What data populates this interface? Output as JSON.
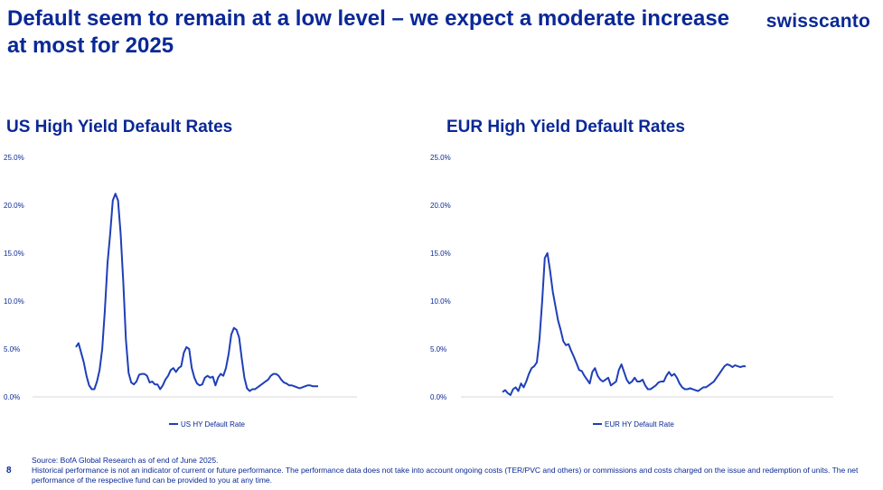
{
  "header": {
    "title": "Default seem to remain at a low level – we expect a moderate increase at most for 2025",
    "logo_text": "swisscanto"
  },
  "colors": {
    "brand": "#0a2896",
    "series": "#1f3fb8"
  },
  "chart_data": [
    {
      "type": "line",
      "title": "US High Yield Default Rates",
      "ylim": [
        0,
        25
      ],
      "yticks": [
        "0.0%",
        "5.0%",
        "10.0%",
        "15.0%",
        "20.0%",
        "25.0%"
      ],
      "legend": "US HY Default Rate",
      "legend_position": "bottom-center",
      "series": [
        {
          "name": "US HY Default Rate",
          "x_index": [
            0,
            1,
            2,
            3,
            4,
            5,
            6,
            7,
            8,
            9,
            10,
            11,
            12,
            13,
            14,
            15,
            16,
            17,
            18,
            19,
            20,
            21,
            22,
            23,
            24,
            25,
            26,
            27,
            28,
            29,
            30,
            31,
            32,
            33,
            34,
            35,
            36,
            37,
            38,
            39,
            40,
            41,
            42,
            43,
            44,
            45,
            46,
            47,
            48,
            49,
            50,
            51,
            52,
            53,
            54,
            55,
            56,
            57,
            58,
            59,
            60,
            61,
            62,
            63,
            64,
            65,
            66,
            67,
            68,
            69,
            70,
            71,
            72,
            73,
            74,
            75,
            76,
            77,
            78,
            79,
            80,
            81,
            82,
            83,
            84,
            85,
            86,
            87,
            88,
            89,
            90,
            91,
            92
          ],
          "values": [
            5.2,
            5.6,
            4.6,
            3.6,
            2.2,
            1.2,
            0.8,
            0.8,
            1.6,
            2.8,
            5.0,
            9.0,
            14.0,
            17.0,
            20.5,
            21.2,
            20.5,
            17.0,
            12.0,
            6.0,
            2.5,
            1.5,
            1.3,
            1.6,
            2.3,
            2.4,
            2.4,
            2.2,
            1.5,
            1.6,
            1.3,
            1.3,
            0.8,
            1.2,
            1.8,
            2.2,
            2.8,
            3.0,
            2.6,
            3.0,
            3.2,
            4.6,
            5.2,
            5.0,
            3.0,
            2.0,
            1.4,
            1.2,
            1.3,
            2.0,
            2.2,
            2.0,
            2.1,
            1.2,
            2.0,
            2.4,
            2.2,
            3.0,
            4.5,
            6.5,
            7.2,
            7.0,
            6.2,
            4.0,
            2.0,
            0.9,
            0.6,
            0.8,
            0.8,
            1.0,
            1.2,
            1.4,
            1.6,
            1.8,
            2.2,
            2.4,
            2.4,
            2.2,
            1.8,
            1.5,
            1.4,
            1.2,
            1.2,
            1.1,
            1.0,
            0.9,
            1.0,
            1.1,
            1.2,
            1.2,
            1.1,
            1.1,
            1.1
          ]
        }
      ]
    },
    {
      "type": "line",
      "title": "EUR High Yield Default Rates",
      "ylim": [
        0,
        25
      ],
      "yticks": [
        "0.0%",
        "5.0%",
        "10.0%",
        "15.0%",
        "20.0%",
        "25.0%"
      ],
      "legend": "EUR HY Default Rate",
      "legend_position": "bottom-center",
      "series": [
        {
          "name": "EUR HY Default Rate",
          "x_index": [
            0,
            1,
            2,
            3,
            4,
            5,
            6,
            7,
            8,
            9,
            10,
            11,
            12,
            13,
            14,
            15,
            16,
            17,
            18,
            19,
            20,
            21,
            22,
            23,
            24,
            25,
            26,
            27,
            28,
            29,
            30,
            31,
            32,
            33,
            34,
            35,
            36,
            37,
            38,
            39,
            40,
            41,
            42,
            43,
            44,
            45,
            46,
            47,
            48,
            49,
            50,
            51,
            52,
            53,
            54,
            55,
            56,
            57,
            58,
            59,
            60,
            61,
            62,
            63,
            64,
            65,
            66,
            67,
            68,
            69,
            70,
            71,
            72,
            73,
            74,
            75,
            76,
            77,
            78,
            79,
            80,
            81,
            82,
            83,
            84,
            85,
            86,
            87,
            88,
            89,
            90,
            91,
            92
          ],
          "values": [
            0.5,
            0.7,
            0.4,
            0.2,
            0.8,
            1.0,
            0.6,
            1.4,
            1.0,
            1.6,
            2.4,
            3.0,
            3.2,
            3.6,
            6.0,
            10.0,
            14.5,
            15.0,
            13.2,
            11.0,
            9.5,
            8.0,
            7.0,
            5.8,
            5.4,
            5.5,
            4.8,
            4.2,
            3.5,
            2.8,
            2.7,
            2.2,
            1.8,
            1.4,
            2.6,
            3.0,
            2.2,
            1.8,
            1.6,
            1.8,
            2.0,
            1.2,
            1.4,
            1.6,
            2.8,
            3.4,
            2.6,
            1.8,
            1.4,
            1.6,
            2.0,
            1.6,
            1.6,
            1.8,
            1.2,
            0.8,
            0.8,
            1.0,
            1.2,
            1.5,
            1.6,
            1.6,
            2.2,
            2.6,
            2.2,
            2.4,
            2.0,
            1.4,
            1.0,
            0.8,
            0.8,
            0.9,
            0.8,
            0.7,
            0.6,
            0.8,
            1.0,
            1.0,
            1.2,
            1.4,
            1.6,
            2.0,
            2.4,
            2.8,
            3.2,
            3.4,
            3.3,
            3.1,
            3.3,
            3.2,
            3.1,
            3.2,
            3.2
          ]
        }
      ]
    }
  ],
  "footer": {
    "page_number": "8",
    "source": "Source: BofA Global Research as of end of June 2025.",
    "disclaimer": "Historical performance is not an indicator of current or future performance. The performance data does not take into account ongoing costs (TER/PVC and others) or commissions and costs charged on the issue and redemption of units. The net performance of the respective fund can be provided to you at any time."
  }
}
